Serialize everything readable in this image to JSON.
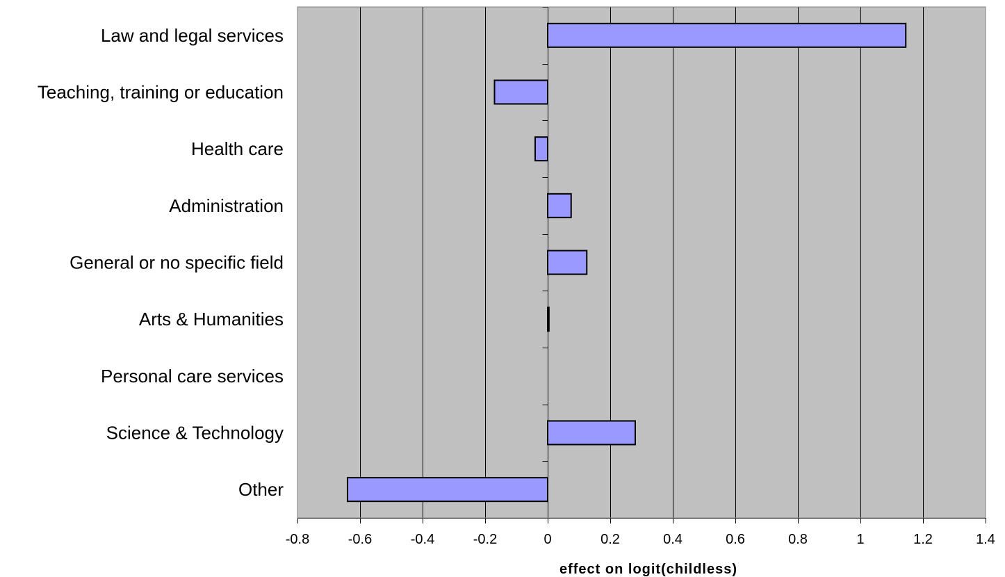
{
  "chart_data": {
    "type": "bar",
    "orientation": "horizontal",
    "categories": [
      "Law and legal services",
      "Teaching, training or education",
      "Health care",
      "Administration",
      "General or no specific field",
      "Arts & Humanities",
      "Personal care services",
      "Science & Technology",
      "Other"
    ],
    "values": [
      1.145,
      -0.17,
      -0.04,
      0.075,
      0.125,
      0.004,
      0.0,
      0.28,
      -0.64
    ],
    "xlabel": "effect on logit(childless)",
    "xlim": [
      -0.8,
      1.4
    ],
    "xticks": [
      -0.8,
      -0.6,
      -0.4,
      -0.2,
      0,
      0.2,
      0.4,
      0.6,
      0.8,
      1,
      1.2,
      1.4
    ],
    "xtick_labels": [
      "-0.8",
      "-0.6",
      "-0.4",
      "-0.2",
      "0",
      "0.2",
      "0.4",
      "0.6",
      "0.8",
      "1",
      "1.2",
      "1.4"
    ],
    "grid": "vertical",
    "legend": "none",
    "colors": {
      "plot_background": "#c0c0c0",
      "bar_fill": "#9999ff",
      "bar_stroke": "#000000",
      "gridline": "#000000"
    }
  }
}
